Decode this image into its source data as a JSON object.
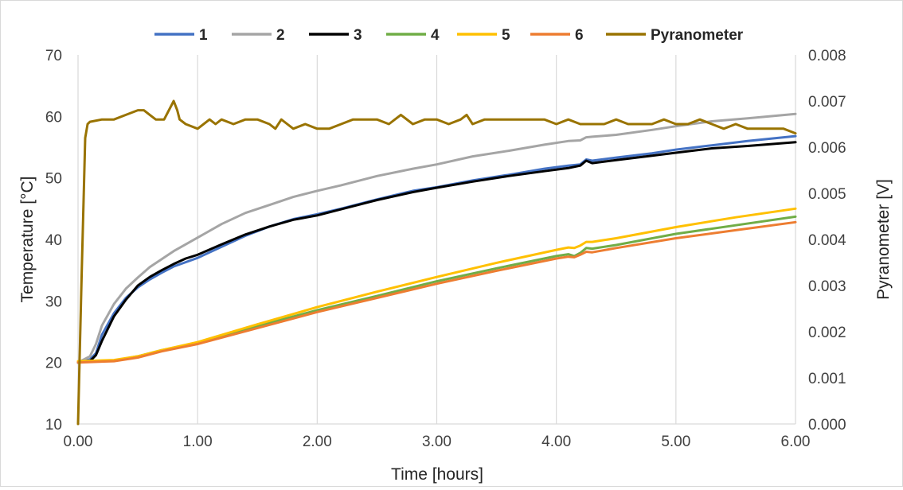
{
  "chart_data": {
    "type": "line",
    "xlabel": "Time [hours]",
    "ylabel": "Temperature [°C]",
    "y2label": "Pyranometer [V]",
    "xlim": [
      0,
      6
    ],
    "ylim": [
      10,
      70
    ],
    "y2lim": [
      0,
      0.008
    ],
    "xticks": [
      "0.00",
      "1.00",
      "2.00",
      "3.00",
      "4.00",
      "5.00",
      "6.00"
    ],
    "yticks": [
      "10",
      "20",
      "30",
      "40",
      "50",
      "60",
      "70"
    ],
    "y2ticks": [
      "0.000",
      "0.001",
      "0.002",
      "0.003",
      "0.004",
      "0.005",
      "0.006",
      "0.007",
      "0.008"
    ],
    "grid": "vertical",
    "legend_position": "top",
    "series": [
      {
        "name": "1",
        "axis": "left",
        "color": "#4472C4",
        "x": [
          0,
          0.1,
          0.15,
          0.2,
          0.3,
          0.4,
          0.5,
          0.6,
          0.7,
          0.8,
          0.9,
          1.0,
          1.2,
          1.4,
          1.6,
          1.8,
          2.0,
          2.2,
          2.5,
          2.8,
          3.0,
          3.3,
          3.6,
          3.9,
          4.1,
          4.2,
          4.25,
          4.3,
          4.5,
          4.8,
          5.0,
          5.3,
          5.6,
          6.0
        ],
        "y": [
          20,
          20.5,
          21.5,
          24.5,
          28,
          30.5,
          32.2,
          33.5,
          34.6,
          35.6,
          36.3,
          37.0,
          38.8,
          40.6,
          42.1,
          43.3,
          44.1,
          45.0,
          46.5,
          47.9,
          48.5,
          49.6,
          50.5,
          51.5,
          52.0,
          52.2,
          53.0,
          52.8,
          53.3,
          54.0,
          54.6,
          55.3,
          56.0,
          56.8
        ]
      },
      {
        "name": "2",
        "axis": "left",
        "color": "#A5A5A5",
        "x": [
          0,
          0.1,
          0.15,
          0.2,
          0.3,
          0.4,
          0.5,
          0.6,
          0.7,
          0.8,
          0.9,
          1.0,
          1.2,
          1.4,
          1.6,
          1.8,
          2.0,
          2.2,
          2.5,
          2.8,
          3.0,
          3.3,
          3.6,
          3.9,
          4.1,
          4.2,
          4.25,
          4.3,
          4.5,
          4.8,
          5.0,
          5.3,
          5.6,
          6.0
        ],
        "y": [
          20,
          21,
          23,
          26,
          29.5,
          32,
          33.8,
          35.5,
          36.8,
          38.1,
          39.2,
          40.3,
          42.5,
          44.3,
          45.6,
          46.9,
          47.9,
          48.8,
          50.3,
          51.5,
          52.2,
          53.5,
          54.4,
          55.4,
          56.0,
          56.1,
          56.6,
          56.7,
          57.0,
          57.8,
          58.4,
          59.2,
          59.7,
          60.4
        ]
      },
      {
        "name": "3",
        "axis": "left",
        "color": "#000000",
        "x": [
          0,
          0.1,
          0.15,
          0.2,
          0.3,
          0.4,
          0.5,
          0.6,
          0.7,
          0.8,
          0.9,
          1.0,
          1.2,
          1.4,
          1.6,
          1.8,
          2.0,
          2.2,
          2.5,
          2.8,
          3.0,
          3.3,
          3.6,
          3.9,
          4.1,
          4.2,
          4.25,
          4.3,
          4.5,
          4.8,
          5.0,
          5.3,
          5.6,
          6.0
        ],
        "y": [
          20,
          20.2,
          21.2,
          23.5,
          27.5,
          30.2,
          32.5,
          33.9,
          35.0,
          36.0,
          36.9,
          37.5,
          39.2,
          40.8,
          42.1,
          43.2,
          43.9,
          44.9,
          46.4,
          47.7,
          48.4,
          49.4,
          50.3,
          51.1,
          51.6,
          52.0,
          52.8,
          52.4,
          52.9,
          53.6,
          54.1,
          54.8,
          55.2,
          55.8
        ]
      },
      {
        "name": "4",
        "axis": "left",
        "color": "#70AD47",
        "x": [
          0,
          0.3,
          0.5,
          0.7,
          1.0,
          1.5,
          2.0,
          2.5,
          3.0,
          3.5,
          4.0,
          4.1,
          4.15,
          4.2,
          4.25,
          4.3,
          4.5,
          5.0,
          5.5,
          6.0
        ],
        "y": [
          20.1,
          20.3,
          21.0,
          22.0,
          23.2,
          25.9,
          28.5,
          30.8,
          33.2,
          35.3,
          37.3,
          37.6,
          37.3,
          37.8,
          38.6,
          38.5,
          39.1,
          40.9,
          42.3,
          43.7
        ]
      },
      {
        "name": "5",
        "axis": "left",
        "color": "#FFC000",
        "x": [
          0,
          0.3,
          0.5,
          0.7,
          1.0,
          1.5,
          2.0,
          2.5,
          3.0,
          3.5,
          4.0,
          4.1,
          4.15,
          4.2,
          4.25,
          4.3,
          4.5,
          5.0,
          5.5,
          6.0
        ],
        "y": [
          20.2,
          20.4,
          21.0,
          22.0,
          23.3,
          26.2,
          29.0,
          31.5,
          33.9,
          36.2,
          38.3,
          38.7,
          38.6,
          39.0,
          39.6,
          39.6,
          40.2,
          42.0,
          43.6,
          45.0
        ]
      },
      {
        "name": "6",
        "axis": "left",
        "color": "#ED7D31",
        "x": [
          0,
          0.3,
          0.5,
          0.7,
          1.0,
          1.5,
          2.0,
          2.5,
          3.0,
          3.5,
          4.0,
          4.1,
          4.15,
          4.2,
          4.25,
          4.3,
          4.5,
          5.0,
          5.5,
          6.0
        ],
        "y": [
          20.0,
          20.2,
          20.8,
          21.8,
          23.0,
          25.6,
          28.2,
          30.5,
          32.8,
          34.9,
          36.9,
          37.2,
          37.1,
          37.5,
          38.0,
          37.9,
          38.6,
          40.2,
          41.5,
          42.8
        ]
      },
      {
        "name": "Pyranometer",
        "axis": "right",
        "color": "#997300",
        "x": [
          0,
          0.03,
          0.06,
          0.08,
          0.1,
          0.2,
          0.3,
          0.4,
          0.5,
          0.55,
          0.6,
          0.65,
          0.7,
          0.72,
          0.8,
          0.83,
          0.85,
          0.9,
          1.0,
          1.1,
          1.15,
          1.2,
          1.3,
          1.4,
          1.5,
          1.6,
          1.65,
          1.7,
          1.75,
          1.8,
          1.9,
          2.0,
          2.1,
          2.2,
          2.3,
          2.4,
          2.5,
          2.6,
          2.65,
          2.7,
          2.8,
          2.9,
          3.0,
          3.1,
          3.2,
          3.25,
          3.3,
          3.4,
          3.5,
          3.6,
          3.7,
          3.8,
          3.9,
          4.0,
          4.1,
          4.2,
          4.3,
          4.4,
          4.5,
          4.6,
          4.7,
          4.8,
          4.9,
          5.0,
          5.1,
          5.2,
          5.3,
          5.4,
          5.5,
          5.6,
          5.7,
          5.8,
          5.9,
          6.0
        ],
        "y": [
          0.0,
          0.0032,
          0.0062,
          0.0065,
          0.00655,
          0.0066,
          0.0066,
          0.0067,
          0.0068,
          0.0068,
          0.0067,
          0.0066,
          0.0066,
          0.0066,
          0.007,
          0.0068,
          0.0066,
          0.0065,
          0.0064,
          0.0066,
          0.0065,
          0.0066,
          0.0065,
          0.0066,
          0.0066,
          0.0065,
          0.0064,
          0.0066,
          0.0065,
          0.0064,
          0.0065,
          0.0064,
          0.0064,
          0.0065,
          0.0066,
          0.0066,
          0.0066,
          0.0065,
          0.0066,
          0.0067,
          0.0065,
          0.0066,
          0.0066,
          0.0065,
          0.0066,
          0.0067,
          0.0065,
          0.0066,
          0.0066,
          0.0066,
          0.0066,
          0.0066,
          0.0066,
          0.0065,
          0.0066,
          0.0065,
          0.0065,
          0.0065,
          0.0066,
          0.0065,
          0.0065,
          0.0065,
          0.0066,
          0.0065,
          0.0065,
          0.0066,
          0.0065,
          0.0064,
          0.0065,
          0.0064,
          0.0064,
          0.0064,
          0.0064,
          0.0063
        ]
      }
    ]
  }
}
